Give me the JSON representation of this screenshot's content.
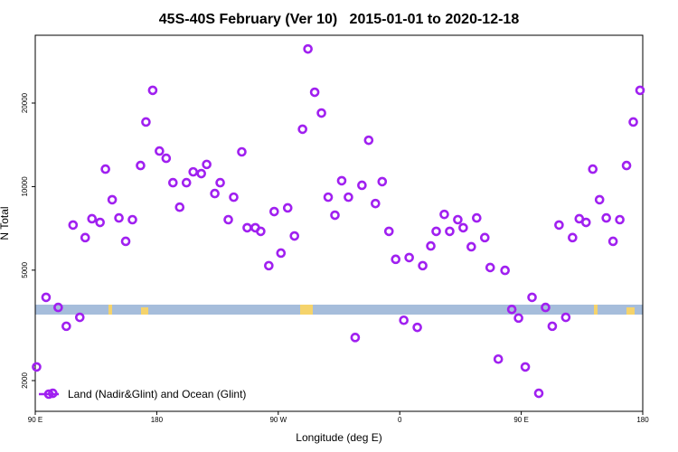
{
  "chart_data": {
    "type": "scatter",
    "title": "45S-40S February (Ver 10)   2015-01-01 to 2020-12-18",
    "x_label": "Longitude (deg E)",
    "y_label": "N Total",
    "log_y": true,
    "legend": "bottom-left",
    "xlim": [
      90,
      540
    ],
    "xticks": [
      {
        "value": 90,
        "label": "90 E"
      },
      180,
      {
        "value": 270,
        "label": "90 W"
      },
      {
        "value": 360,
        "label": "0"
      },
      {
        "value": 450,
        "label": "90 E"
      },
      {
        "value": 540,
        "label": "180"
      }
    ],
    "ylim": [
      1550,
      35100
    ],
    "yticks": [
      2000,
      5000,
      10000,
      20000
    ],
    "series": [
      {
        "name": "Land (Nadir&Glint) and Ocean (Glint)",
        "color": "#a020f0",
        "x": [
          91,
          98,
          103,
          107,
          113,
          118,
          123,
          127,
          132,
          138,
          142,
          147,
          152,
          157,
          162,
          168,
          172,
          177,
          182,
          187,
          192,
          197,
          202,
          207,
          213,
          217,
          223,
          227,
          233,
          237,
          243,
          247,
          253,
          257,
          263,
          267,
          272,
          277,
          282,
          288,
          292,
          297,
          302,
          307,
          312,
          317,
          322,
          327,
          332,
          337,
          342,
          347,
          352,
          357,
          363,
          367,
          373,
          377,
          383,
          387,
          393,
          397,
          403,
          407,
          413,
          417,
          423,
          427,
          433,
          438,
          443,
          448,
          453,
          458,
          463,
          468,
          473,
          478,
          483,
          488,
          493,
          498,
          503,
          508,
          513,
          518,
          523,
          528,
          533,
          538
        ],
        "values": [
          2240,
          3990,
          1800,
          3670,
          3140,
          7270,
          3380,
          6550,
          7660,
          7430,
          11560,
          8970,
          7710,
          6350,
          7600,
          11910,
          17090,
          22230,
          13430,
          12650,
          10330,
          8430,
          10330,
          11300,
          11140,
          12020,
          9440,
          10330,
          7600,
          9160,
          13340,
          7110,
          7110,
          6900,
          5190,
          8130,
          5760,
          8380,
          6640,
          16100,
          31330,
          21880,
          18410,
          9160,
          7890,
          10500,
          9160,
          2860,
          10110,
          14690,
          8690,
          10420,
          6900,
          5470,
          3300,
          5550,
          3110,
          5190,
          6110,
          6900,
          7940,
          6900,
          7600,
          7110,
          6070,
          7710,
          6550,
          5110,
          2390,
          4990,
          3610,
          3360,
          2240,
          3990,
          1800,
          3670,
          3140,
          7270,
          3380,
          6550,
          7660,
          7430,
          11560,
          8970,
          7710,
          6350,
          7600,
          11910,
          17090,
          22230
        ]
      }
    ]
  }
}
